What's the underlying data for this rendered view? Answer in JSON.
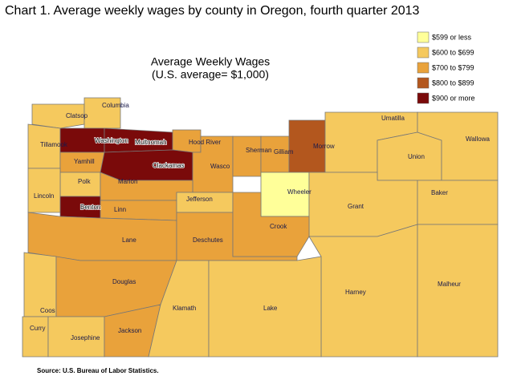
{
  "title": "Chart 1. Average weekly wages by county in Oregon, fourth quarter 2013",
  "map_title": [
    "Average Weekly Wages",
    "(U.S. average= $1,000)"
  ],
  "legend": [
    {
      "label": "$599 or less",
      "color": "#ffff99"
    },
    {
      "label": "$600 to $699",
      "color": "#f5c95e"
    },
    {
      "label": "$700 to $799",
      "color": "#e9a23b"
    },
    {
      "label": "$800 to $899",
      "color": "#b3571e"
    },
    {
      "label": "$900 or more",
      "color": "#7a0a0a"
    }
  ],
  "counties": [
    {
      "name": "Clatsop",
      "class": 1
    },
    {
      "name": "Columbia",
      "class": 1
    },
    {
      "name": "Tillamook",
      "class": 1
    },
    {
      "name": "Washington",
      "class": 4
    },
    {
      "name": "Multnomah",
      "class": 4
    },
    {
      "name": "Hood River",
      "class": 2
    },
    {
      "name": "Yamhill",
      "class": 2
    },
    {
      "name": "Clackamas",
      "class": 4
    },
    {
      "name": "Wasco",
      "class": 2
    },
    {
      "name": "Sherman",
      "class": 2
    },
    {
      "name": "Gilliam",
      "class": 2
    },
    {
      "name": "Morrow",
      "class": 3
    },
    {
      "name": "Umatilla",
      "class": 1
    },
    {
      "name": "Union",
      "class": 1
    },
    {
      "name": "Wallowa",
      "class": 1
    },
    {
      "name": "Polk",
      "class": 1
    },
    {
      "name": "Marion",
      "class": 2
    },
    {
      "name": "Lincoln",
      "class": 1
    },
    {
      "name": "Benton",
      "class": 4
    },
    {
      "name": "Linn",
      "class": 2
    },
    {
      "name": "Jefferson",
      "class": 1
    },
    {
      "name": "Wheeler",
      "class": 0
    },
    {
      "name": "Grant",
      "class": 1
    },
    {
      "name": "Baker",
      "class": 1
    },
    {
      "name": "Harney",
      "class": 1
    },
    {
      "name": "Malheur",
      "class": 1
    },
    {
      "name": "Lane",
      "class": 2
    },
    {
      "name": "Deschutes",
      "class": 2
    },
    {
      "name": "Crook",
      "class": 2
    },
    {
      "name": "Coos",
      "class": 1
    },
    {
      "name": "Douglas",
      "class": 2
    },
    {
      "name": "Curry",
      "class": 1
    },
    {
      "name": "Josephine",
      "class": 1
    },
    {
      "name": "Jackson",
      "class": 2
    },
    {
      "name": "Klamath",
      "class": 1
    },
    {
      "name": "Lake",
      "class": 1
    }
  ],
  "source": "Source: U.S. Bureau of Labor Statistics."
}
